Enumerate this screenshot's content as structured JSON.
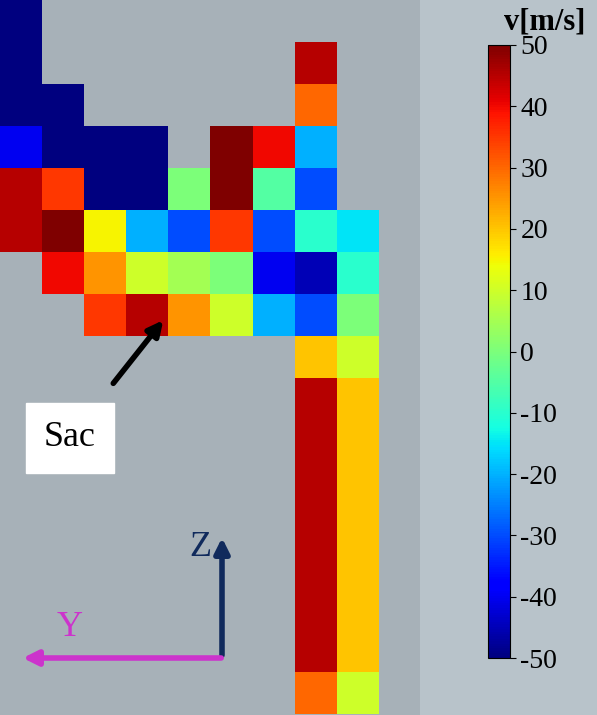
{
  "chart_data": {
    "type": "heatmap",
    "xlabel": "Y",
    "ylabel": "Z",
    "annotations": [
      "Sac"
    ],
    "tick_labels": false,
    "cells": [
      [
        -50,
        null,
        null,
        null,
        null,
        null,
        null,
        null,
        null,
        null
      ],
      [
        -50,
        null,
        null,
        null,
        null,
        null,
        null,
        45,
        null,
        null
      ],
      [
        -50,
        -50,
        null,
        null,
        null,
        null,
        null,
        30,
        null,
        null
      ],
      [
        -40,
        -50,
        -50,
        -50,
        null,
        50,
        40,
        -20,
        null,
        null
      ],
      [
        45,
        35,
        -50,
        -50,
        0,
        50,
        -5,
        -30,
        null,
        null
      ],
      [
        45,
        50,
        15,
        -20,
        -30,
        35,
        -30,
        -10,
        -15,
        null
      ],
      [
        null,
        40,
        25,
        10,
        5,
        0,
        -40,
        -45,
        -10,
        null
      ],
      [
        null,
        null,
        35,
        45,
        25,
        10,
        -20,
        -30,
        0,
        null
      ],
      [
        null,
        null,
        null,
        null,
        null,
        null,
        null,
        20,
        10,
        null
      ],
      [
        null,
        null,
        null,
        null,
        null,
        null,
        null,
        45,
        20,
        null
      ],
      [
        null,
        null,
        null,
        null,
        null,
        null,
        null,
        45,
        20,
        null
      ],
      [
        null,
        null,
        null,
        null,
        null,
        null,
        null,
        45,
        20,
        null
      ],
      [
        null,
        null,
        null,
        null,
        null,
        null,
        null,
        45,
        20,
        null
      ],
      [
        null,
        null,
        null,
        null,
        null,
        null,
        null,
        45,
        20,
        null
      ],
      [
        null,
        null,
        null,
        null,
        null,
        null,
        null,
        45,
        20,
        null
      ],
      [
        null,
        null,
        null,
        null,
        null,
        null,
        null,
        45,
        20,
        null
      ],
      [
        null,
        null,
        null,
        null,
        null,
        null,
        null,
        30,
        10,
        null
      ]
    ],
    "colorbar": {
      "label": "v[m/s]",
      "range": [
        -50,
        50
      ],
      "ticks": [
        -50,
        -40,
        -30,
        -20,
        -10,
        0,
        10,
        20,
        30,
        40,
        50
      ]
    }
  }
}
